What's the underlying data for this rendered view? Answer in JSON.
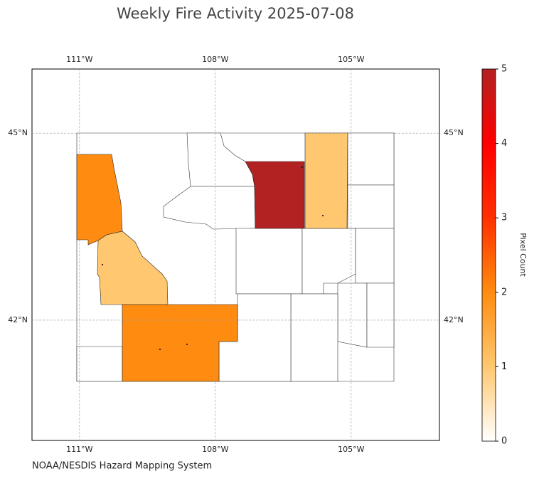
{
  "chart_data": {
    "type": "map",
    "title": "Weekly Fire Activity 2025-07-08",
    "credit": "NOAA/NESDIS Hazard Mapping System",
    "xlim": [
      -112.05,
      -103.05
    ],
    "ylim": [
      40.07,
      46.03
    ],
    "xticks": [
      {
        "value": -111,
        "label": "111°W"
      },
      {
        "value": -108,
        "label": "108°W"
      },
      {
        "value": -105,
        "label": "105°W"
      }
    ],
    "yticks": [
      {
        "value": 45,
        "label": "45°N"
      },
      {
        "value": 42,
        "label": "42°N"
      }
    ],
    "grid": true,
    "values": [
      2,
      1,
      2,
      5,
      1
    ],
    "clim": [
      0,
      5
    ],
    "cticks": [
      0,
      1,
      2,
      3,
      4,
      5
    ],
    "clabel": "Pixel Count",
    "colormap": [
      "#ffffff",
      "#ffc870",
      "#ff8c10",
      "#ff3000",
      "#ff0000",
      "#b22222"
    ]
  }
}
